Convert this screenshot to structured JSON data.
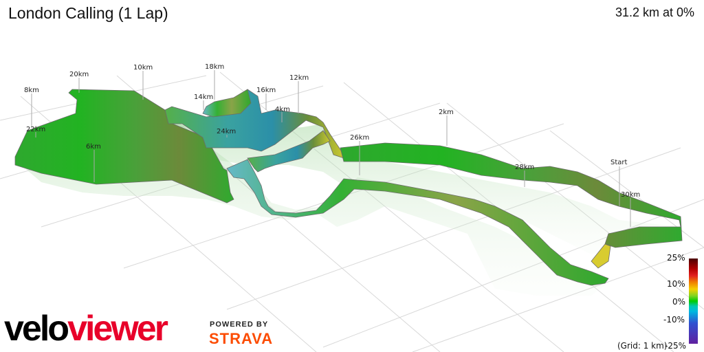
{
  "header": {
    "title": "London Calling (1 Lap)",
    "summary": "31.2 km at 0%"
  },
  "markers": [
    "Start",
    "2km",
    "4km",
    "6km",
    "8km",
    "10km",
    "12km",
    "14km",
    "16km",
    "18km",
    "20km",
    "22km",
    "24km",
    "26km",
    "28km",
    "30km"
  ],
  "legend": {
    "labels": [
      "25%",
      "10%",
      "0%",
      "-10%",
      "-25%"
    ],
    "grid_note": "(Grid: 1 km)",
    "colors": [
      "#4a0000",
      "#e02020",
      "#f5d000",
      "#00cc00",
      "#00b8e0",
      "#6020a0"
    ]
  },
  "branding": {
    "logo_part1": "velo",
    "logo_part2": "viewer",
    "powered_by": "POWERED BY",
    "strava": "STRAVA",
    "colors": {
      "velo": "#000000",
      "viewer": "#e8002a",
      "strava": "#fc4c02"
    }
  }
}
